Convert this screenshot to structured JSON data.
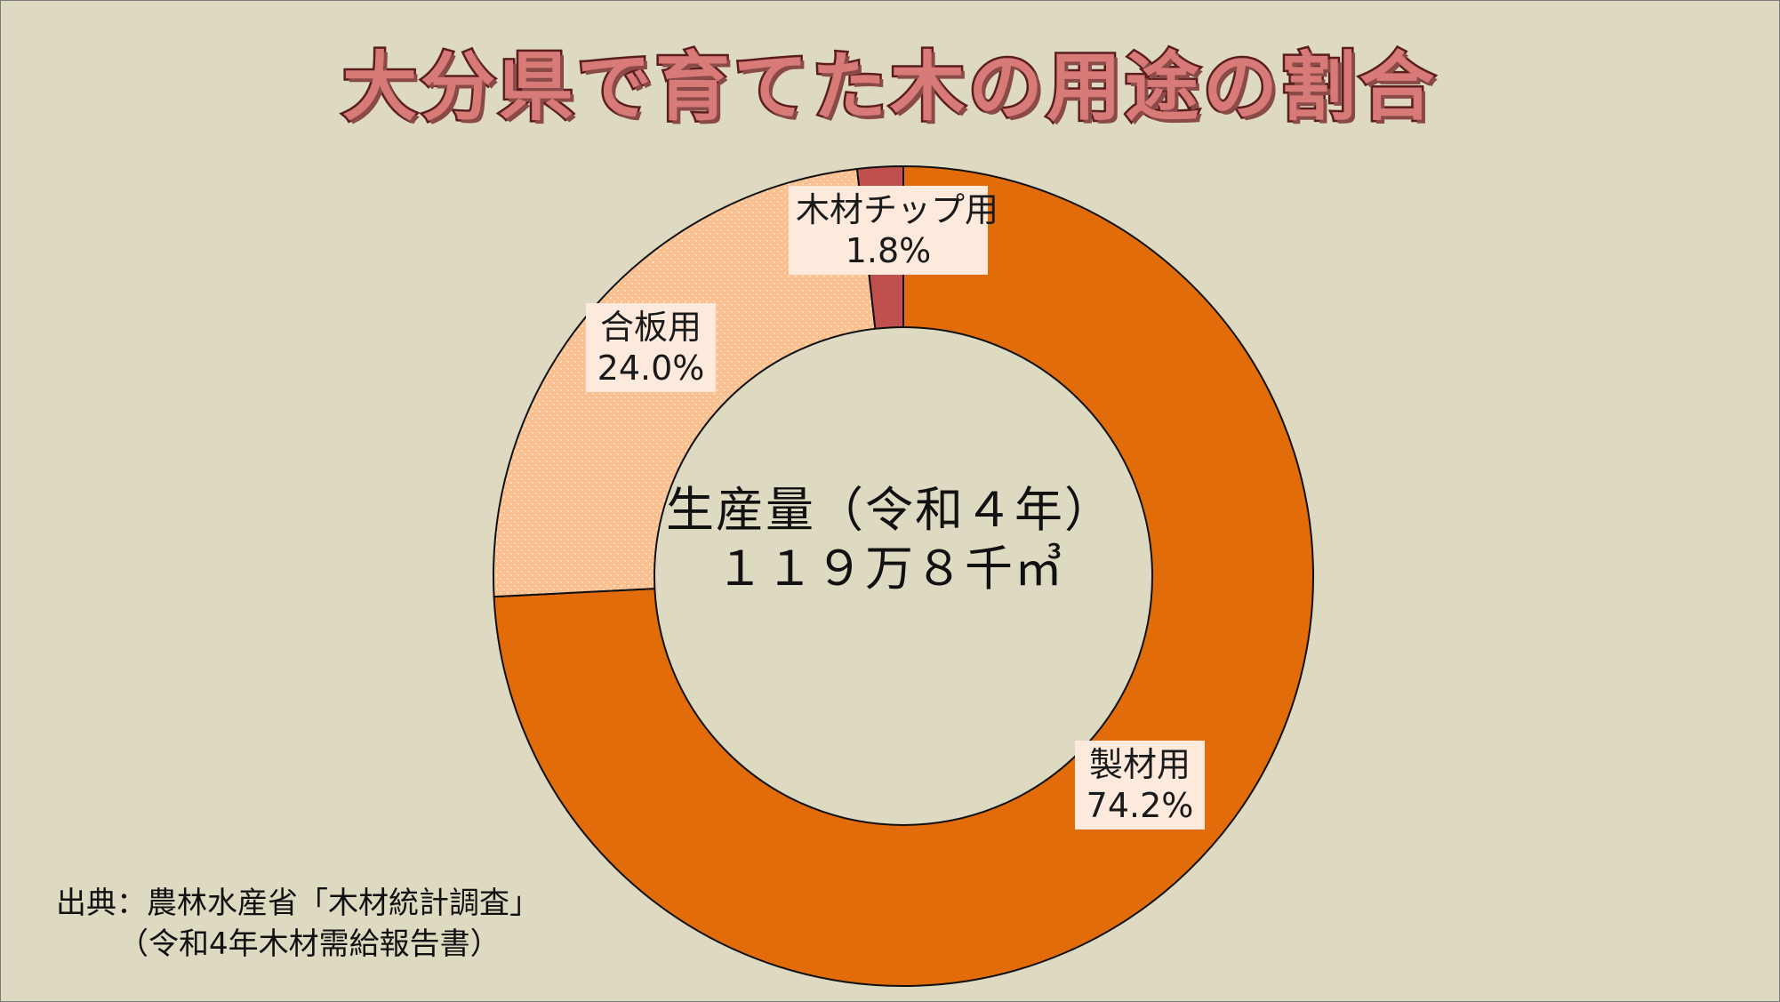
{
  "title": "大分県で育てた木の用途の割合",
  "center": {
    "line1": "生産量（令和４年）",
    "line2": "１１９万８千㎥"
  },
  "source": {
    "line1": "出典：農林水産省「木材統計調査」",
    "line2": "（令和4年木材需給報告書）"
  },
  "colors": {
    "background": "#dedac2",
    "title_fill": "#d77a78",
    "title_stroke": "#5a1e1e",
    "label_box": "#fdeadd"
  },
  "chart_data": {
    "type": "pie",
    "variant": "donut",
    "start": "12 o'clock",
    "direction": "clockwise",
    "slices": [
      {
        "label": "製材用",
        "value": 74.2,
        "value_text": "74.2%",
        "color": "#e36c0a",
        "pattern": "solid"
      },
      {
        "label": "合板用",
        "value": 24.0,
        "value_text": "24.0%",
        "color": "#fac08f",
        "pattern": "dotted"
      },
      {
        "label": "木材チップ用",
        "value": 1.8,
        "value_text": "1.8%",
        "color": "#c0504d",
        "pattern": "solid"
      }
    ]
  }
}
